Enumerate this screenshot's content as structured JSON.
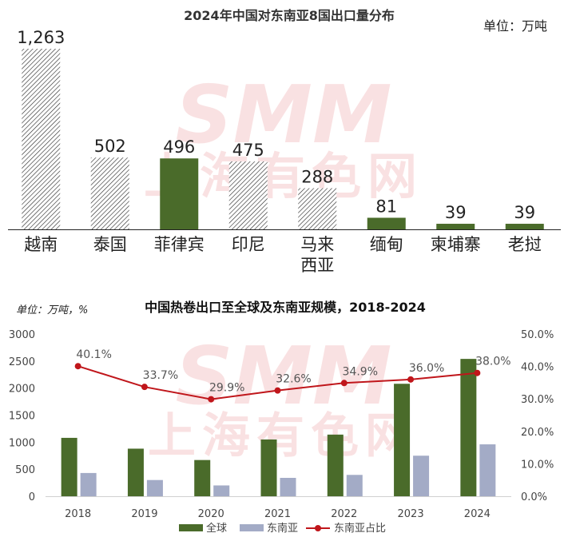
{
  "watermark": {
    "line1": "SMM",
    "line2": "上海有色网"
  },
  "chart_data": [
    {
      "type": "bar",
      "title": "2024年中国对东南亚8国出口量分布",
      "unit_label": "单位：万吨",
      "categories": [
        "越南",
        "泰国",
        "菲律宾",
        "印尼",
        "马来西亚",
        "缅甸",
        "柬埔寨",
        "老挝"
      ],
      "category_lines": [
        [
          "越南"
        ],
        [
          "泰国"
        ],
        [
          "菲律宾"
        ],
        [
          "印尼"
        ],
        [
          "马来",
          "西亚"
        ],
        [
          "缅甸"
        ],
        [
          "柬埔寨"
        ],
        [
          "老挝"
        ]
      ],
      "values": [
        1263,
        502,
        496,
        475,
        288,
        81,
        39,
        39
      ],
      "value_labels": [
        "1,263",
        "502",
        "496",
        "475",
        "288",
        "81",
        "39",
        "39"
      ],
      "bar_styles": [
        "hatched",
        "hatched",
        "solid",
        "hatched",
        "hatched",
        "solid",
        "solid",
        "solid"
      ],
      "solid_color": "#4a6b2a",
      "ylim": [
        0,
        1263
      ]
    },
    {
      "type": "bar+line",
      "title": "中国热卷出口至全球及东南亚规模，2018-2024",
      "unit_label": "单位：万吨，%",
      "categories": [
        "2018",
        "2019",
        "2020",
        "2021",
        "2022",
        "2023",
        "2024"
      ],
      "series": [
        {
          "name": "全球",
          "type": "bar",
          "axis": "left",
          "color": "#4a6b2a",
          "values": [
            1080,
            880,
            670,
            1050,
            1140,
            2080,
            2540
          ]
        },
        {
          "name": "东南亚",
          "type": "bar",
          "axis": "left",
          "color": "#a3abc6",
          "values": [
            430,
            300,
            200,
            340,
            395,
            750,
            960
          ]
        },
        {
          "name": "东南亚占比",
          "type": "line",
          "axis": "right",
          "color": "#c0161b",
          "values": [
            40.1,
            33.7,
            29.9,
            32.6,
            34.9,
            36.0,
            38.0
          ],
          "labels": [
            "40.1%",
            "33.7%",
            "29.9%",
            "32.6%",
            "34.9%",
            "36.0%",
            "38.0%"
          ]
        }
      ],
      "y_left": {
        "ylim": [
          0,
          3000
        ],
        "ticks": [
          "0",
          "500",
          "1000",
          "1500",
          "2000",
          "2500",
          "3000"
        ]
      },
      "y_right": {
        "ylim": [
          0,
          50
        ],
        "ticks": [
          "0.0%",
          "10.0%",
          "20.0%",
          "30.0%",
          "40.0%",
          "50.0%"
        ]
      },
      "legend_position": "bottom"
    }
  ]
}
